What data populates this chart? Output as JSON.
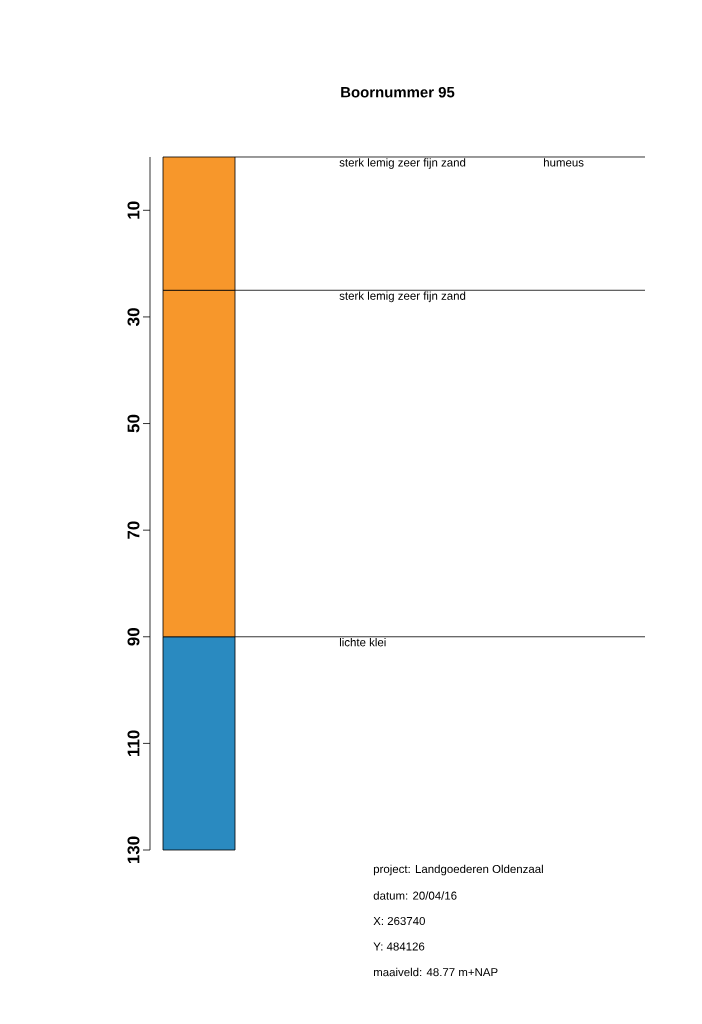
{
  "chart_data": {
    "type": "bar",
    "title": "Boornummer 95",
    "stacked": true,
    "categories": [
      null
    ],
    "series": [
      {
        "color": "#f7972b",
        "values": [
          25
        ]
      },
      {
        "color": "#f7972b",
        "values": [
          65
        ]
      },
      {
        "color": "#2a8ac0",
        "values": [
          40
        ]
      }
    ],
    "ylim": [
      130,
      0
    ],
    "yticks": [
      10,
      30,
      50,
      70,
      90,
      110,
      130
    ],
    "ref_lines": [
      {
        "axis": "y",
        "value": 0,
        "label": "sterk lemig zeer fijn zand"
      },
      {
        "axis": "y",
        "value": 25,
        "label": "sterk lemig zeer fijn zand"
      },
      {
        "axis": "y",
        "value": 90,
        "label": "lichte klei"
      }
    ],
    "annotations": [
      "humeus",
      "project:   Landgoederen Oldenzaal",
      "datum:   20/04/16",
      "X:   263740",
      "Y:   484126",
      "maaiveld: 48.77 m+NAP"
    ]
  }
}
